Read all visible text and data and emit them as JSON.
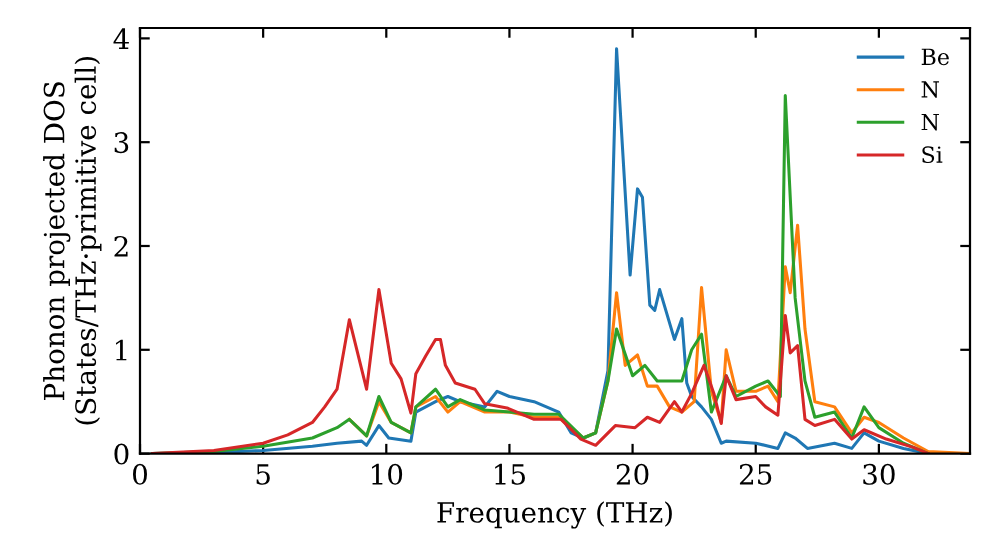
{
  "chart_data": {
    "type": "line",
    "xlabel": "Frequency (THz)",
    "ylabel": "Phonon projected DOS\n(States/THz·primitive cell)",
    "xlim": [
      0,
      33.7
    ],
    "ylim": [
      0,
      4.1
    ],
    "xticks": [
      0,
      5,
      10,
      15,
      20,
      25,
      30
    ],
    "yticks": [
      0,
      1,
      2,
      3,
      4
    ],
    "grid": false,
    "legend": "top right",
    "marker": "none",
    "line_style": "solid",
    "series": [
      {
        "name": "Be",
        "color": "#1f77b4",
        "x": [
          0.5,
          3,
          5,
          7,
          8,
          9,
          9.2,
          9.7,
          10.1,
          11,
          11.2,
          12,
          12.5,
          13,
          14,
          14.5,
          15,
          16,
          17,
          17.5,
          18,
          18.5,
          19,
          19.35,
          19.9,
          20.2,
          20.4,
          20.7,
          20.9,
          21.1,
          21.7,
          22,
          22.2,
          22.4,
          22.8,
          23.2,
          23.6,
          23.8,
          25,
          25.9,
          26.2,
          26.6,
          27.1,
          28.2,
          28.9,
          29.4,
          30,
          31,
          32,
          33.7
        ],
        "values": [
          0,
          0.01,
          0.03,
          0.07,
          0.1,
          0.12,
          0.08,
          0.27,
          0.15,
          0.12,
          0.4,
          0.5,
          0.55,
          0.5,
          0.45,
          0.6,
          0.55,
          0.5,
          0.4,
          0.2,
          0.15,
          0.2,
          0.8,
          3.9,
          1.72,
          2.55,
          2.47,
          1.43,
          1.38,
          1.58,
          1.1,
          1.3,
          0.68,
          0.55,
          0.45,
          0.33,
          0.1,
          0.12,
          0.1,
          0.05,
          0.2,
          0.15,
          0.05,
          0.1,
          0.05,
          0.2,
          0.12,
          0.05,
          0,
          0
        ]
      },
      {
        "name": "N",
        "color": "#ff7f0e",
        "x": [
          8.5,
          9.2,
          9.7,
          10.2,
          11,
          11.2,
          12,
          12.5,
          13,
          14,
          15,
          16,
          17,
          18,
          18.5,
          19,
          19.35,
          19.7,
          20.2,
          20.6,
          21,
          21.5,
          22,
          22.5,
          22.8,
          23.2,
          23.6,
          23.8,
          24.2,
          25,
          25.5,
          25.9,
          26.2,
          26.4,
          26.7,
          27,
          27.4,
          28.2,
          28.9,
          29.4,
          30,
          31,
          32,
          33.7
        ],
        "values": [
          0.33,
          0.17,
          0.5,
          0.3,
          0.2,
          0.45,
          0.55,
          0.4,
          0.5,
          0.4,
          0.4,
          0.35,
          0.35,
          0.15,
          0.2,
          0.7,
          1.55,
          0.85,
          0.95,
          0.65,
          0.65,
          0.45,
          0.4,
          0.5,
          1.6,
          0.6,
          0.3,
          1.0,
          0.6,
          0.6,
          0.65,
          0.5,
          1.8,
          1.55,
          2.2,
          1.2,
          0.5,
          0.45,
          0.2,
          0.35,
          0.3,
          0.15,
          0.02,
          0
        ]
      },
      {
        "name": "N",
        "color": "#2ca02c",
        "x": [
          0.5,
          3,
          5,
          7,
          8,
          8.5,
          9.2,
          9.7,
          10.2,
          11,
          11.2,
          12,
          12.5,
          13,
          14,
          15,
          16,
          17,
          18,
          18.5,
          19,
          19.35,
          20,
          20.5,
          21,
          22,
          22.4,
          22.8,
          23.2,
          23.8,
          24.2,
          25,
          25.5,
          26,
          26.2,
          26.6,
          27,
          27.4,
          28.2,
          28.9,
          29.4,
          30,
          31,
          32
        ],
        "values": [
          0,
          0.02,
          0.07,
          0.15,
          0.25,
          0.33,
          0.17,
          0.55,
          0.3,
          0.2,
          0.45,
          0.62,
          0.45,
          0.52,
          0.42,
          0.4,
          0.38,
          0.38,
          0.15,
          0.2,
          0.7,
          1.2,
          0.75,
          0.85,
          0.7,
          0.7,
          1.0,
          1.15,
          0.4,
          0.75,
          0.55,
          0.65,
          0.7,
          0.55,
          3.45,
          1.5,
          0.7,
          0.35,
          0.4,
          0.15,
          0.45,
          0.25,
          0.1,
          0
        ]
      },
      {
        "name": "Si",
        "color": "#d62728",
        "x": [
          0.5,
          3,
          5,
          6,
          7,
          7.5,
          8,
          8.5,
          9.2,
          9.7,
          10.2,
          10.6,
          11,
          11.2,
          11.6,
          12,
          12.2,
          12.4,
          12.8,
          13.6,
          14,
          14.9,
          16,
          17.1,
          17.9,
          18.5,
          19.3,
          20.1,
          20.6,
          21.1,
          21.7,
          22,
          22.4,
          22.9,
          23.3,
          23.6,
          23.8,
          24.2,
          25,
          25.4,
          25.9,
          26.2,
          26.4,
          26.7,
          27,
          27.4,
          28.2,
          28.9,
          29.4,
          30.3,
          31.4,
          32
        ],
        "values": [
          0,
          0.03,
          0.1,
          0.18,
          0.3,
          0.45,
          0.62,
          1.29,
          0.62,
          1.58,
          0.87,
          0.72,
          0.39,
          0.77,
          0.94,
          1.1,
          1.1,
          0.85,
          0.68,
          0.62,
          0.48,
          0.44,
          0.33,
          0.33,
          0.14,
          0.08,
          0.27,
          0.25,
          0.35,
          0.3,
          0.5,
          0.4,
          0.58,
          0.85,
          0.58,
          0.29,
          0.75,
          0.52,
          0.55,
          0.45,
          0.37,
          1.33,
          0.97,
          1.04,
          0.33,
          0.27,
          0.33,
          0.14,
          0.23,
          0.14,
          0.06,
          0
        ]
      }
    ]
  }
}
